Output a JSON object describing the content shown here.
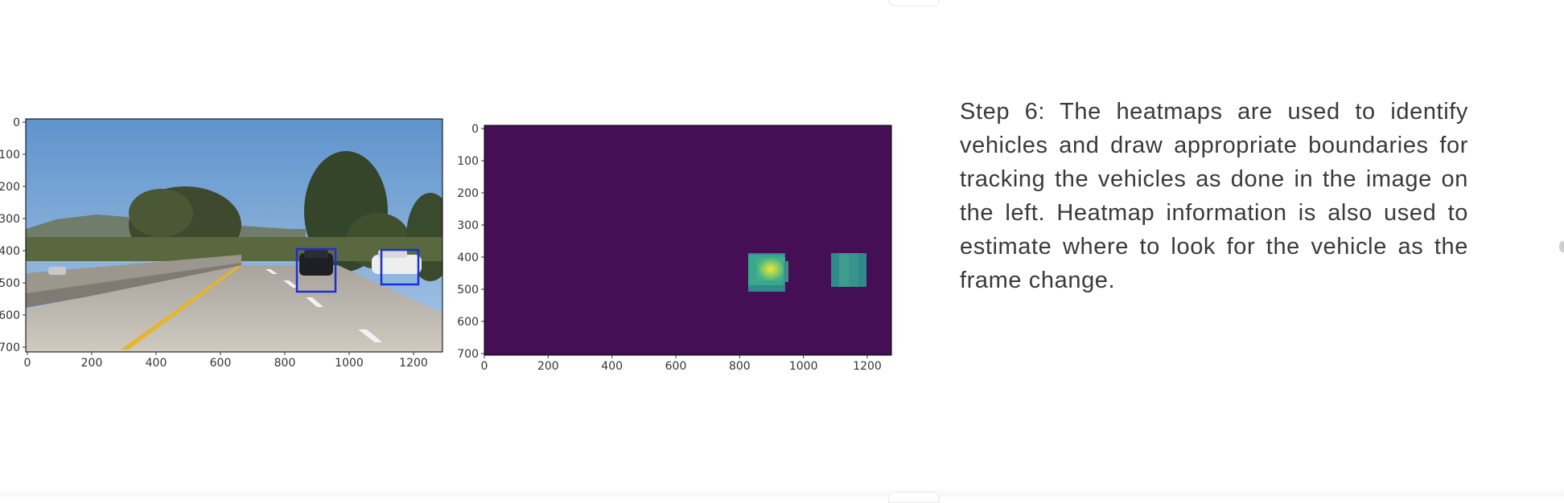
{
  "slide": {
    "description": "Step 6: The heatmaps are used to identify vehicles and draw appropriate boundaries for tracking the vehicles as done in the image on the left. Heatmap information is also used to estimate where to look for the vehicle as the frame change."
  },
  "plots": {
    "left": {
      "y_ticks": [
        "0",
        "100",
        "200",
        "300",
        "400",
        "500",
        "600",
        "700"
      ],
      "x_ticks": [
        "0",
        "200",
        "400",
        "600",
        "800",
        "1000",
        "1200"
      ],
      "box_color": "#1a2fd8"
    },
    "right": {
      "y_ticks": [
        "0",
        "100",
        "200",
        "300",
        "400",
        "500",
        "600",
        "700"
      ],
      "x_ticks": [
        "0",
        "200",
        "400",
        "600",
        "800",
        "1000",
        "1200"
      ],
      "background_color": "#440f55"
    }
  },
  "colors": {
    "sky": "#6d9fd0",
    "road": "#b8b3aa",
    "lane_yellow": "#e5b52a",
    "heat_low": "#2f8a8c",
    "heat_mid": "#3fb98a",
    "heat_high": "#e6e53a"
  }
}
